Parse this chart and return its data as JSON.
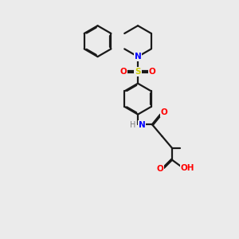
{
  "bg_color": "#ebebeb",
  "bond_color": "#1a1a1a",
  "n_color": "#0000ff",
  "o_color": "#ff0000",
  "s_color": "#cccc00",
  "h_color": "#808080",
  "line_width": 1.6,
  "dbo": 0.055,
  "xlim": [
    0,
    10
  ],
  "ylim": [
    0,
    13
  ],
  "figsize": [
    3.0,
    3.0
  ],
  "dpi": 100
}
